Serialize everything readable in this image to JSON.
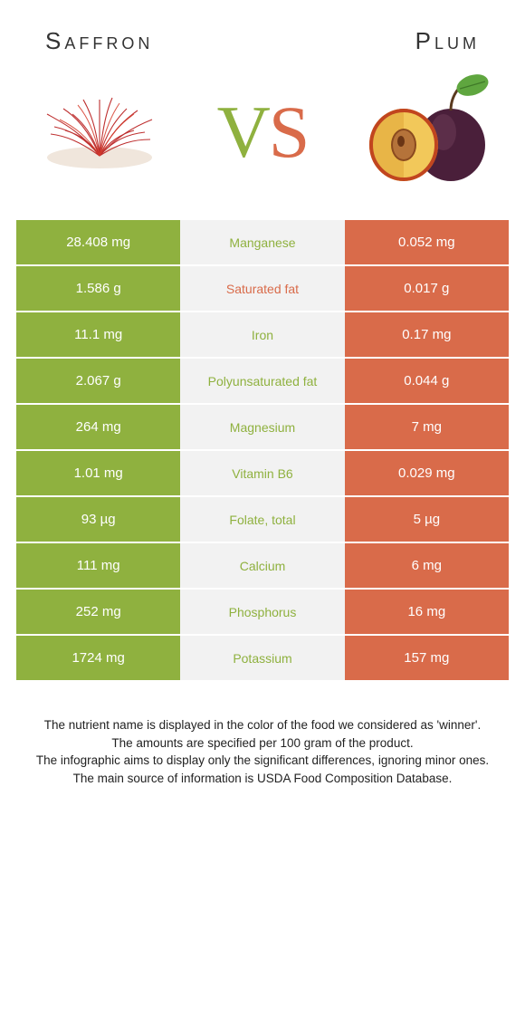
{
  "header": {
    "left": "Saffron",
    "right": "Plum",
    "vs_v": "V",
    "vs_s": "S"
  },
  "colors": {
    "left_bg": "#8fb13f",
    "right_bg": "#d96b4a",
    "mid_bg": "#f2f2f2",
    "winner_left_text": "#8fb13f",
    "winner_right_text": "#d96b4a",
    "row_border": "#ffffff"
  },
  "table": {
    "rows": [
      {
        "left": "28.408 mg",
        "mid": "Manganese",
        "right": "0.052 mg",
        "winner": "left"
      },
      {
        "left": "1.586 g",
        "mid": "Saturated fat",
        "right": "0.017 g",
        "winner": "right"
      },
      {
        "left": "11.1 mg",
        "mid": "Iron",
        "right": "0.17 mg",
        "winner": "left"
      },
      {
        "left": "2.067 g",
        "mid": "Polyunsaturated fat",
        "right": "0.044 g",
        "winner": "left"
      },
      {
        "left": "264 mg",
        "mid": "Magnesium",
        "right": "7 mg",
        "winner": "left"
      },
      {
        "left": "1.01 mg",
        "mid": "Vitamin B6",
        "right": "0.029 mg",
        "winner": "left"
      },
      {
        "left": "93 µg",
        "mid": "Folate, total",
        "right": "5 µg",
        "winner": "left"
      },
      {
        "left": "111 mg",
        "mid": "Calcium",
        "right": "6 mg",
        "winner": "left"
      },
      {
        "left": "252 mg",
        "mid": "Phosphorus",
        "right": "16 mg",
        "winner": "left"
      },
      {
        "left": "1724 mg",
        "mid": "Potassium",
        "right": "157 mg",
        "winner": "left"
      }
    ]
  },
  "footer": {
    "line1": "The nutrient name is displayed in the color of the food we considered as 'winner'.",
    "line2": "The amounts are specified per 100 gram of the product.",
    "line3": "The infographic aims to display only the significant differences, ignoring minor ones.",
    "line4": "The main source of information is USDA Food Composition Database."
  }
}
